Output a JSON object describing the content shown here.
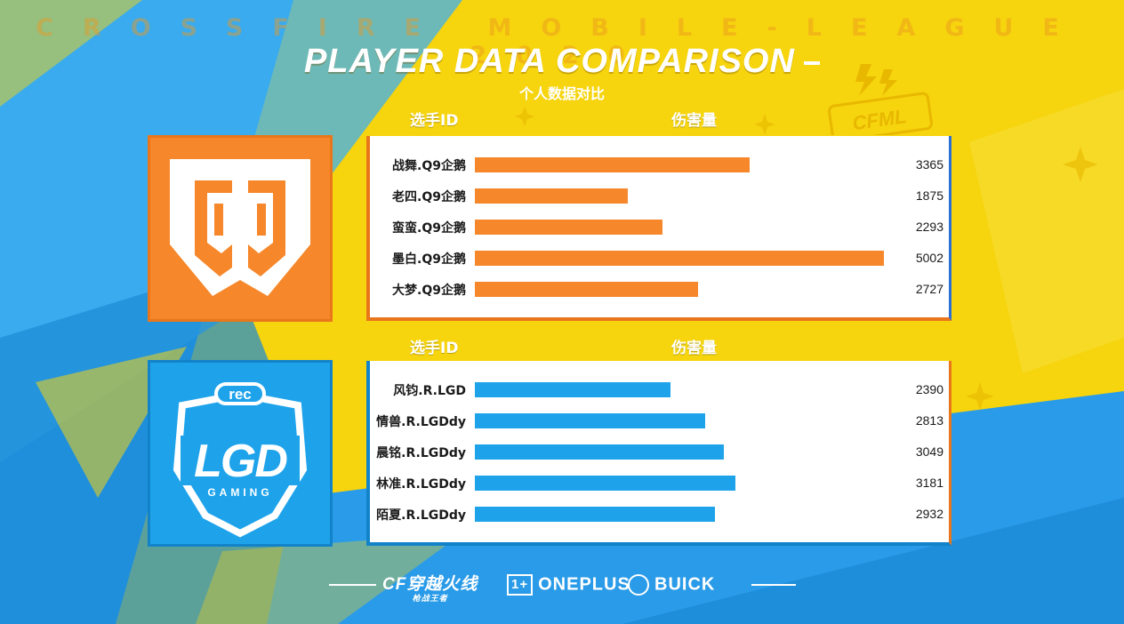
{
  "header": {
    "league": "CROSSFIRE MOBILE-LEAGUE 2020",
    "title": "PLAYER DATA COMPARISON",
    "subtitle": "个人数据对比",
    "col_player": "选手ID",
    "col_damage": "伤害量"
  },
  "chart_data": [
    {
      "type": "bar",
      "orientation": "horizontal",
      "team_logo": "Q9",
      "color": "#f6872a",
      "categories": [
        "战舞.Q9企鹅",
        "老四.Q9企鹅",
        "蛮蛮.Q9企鹅",
        "墨白.Q9企鹅",
        "大梦.Q9企鹅"
      ],
      "values": [
        3365,
        1875,
        2293,
        5002,
        2727
      ],
      "xlabel": "伤害量",
      "ylabel": "选手ID",
      "xlim": [
        0,
        5002
      ],
      "grid": false
    },
    {
      "type": "bar",
      "orientation": "horizontal",
      "team_logo": "LGD GAMING",
      "logo_badge": "rec",
      "color": "#1ea3eb",
      "categories": [
        "风钧.R.LGD",
        "情兽.R.LGDdy",
        "晨铭.R.LGDdy",
        "林准.R.LGDdy",
        "陌夏.R.LGDdy"
      ],
      "values": [
        2390,
        2813,
        3049,
        3181,
        2932
      ],
      "xlabel": "伤害量",
      "ylabel": "选手ID",
      "xlim": [
        0,
        5002
      ],
      "grid": false
    }
  ],
  "footer": {
    "sponsors": [
      "穿越火线",
      "ONEPLUS",
      "BUICK"
    ],
    "cf_sub": "枪战王者"
  },
  "decor": {
    "corner_logo": "CFML"
  }
}
